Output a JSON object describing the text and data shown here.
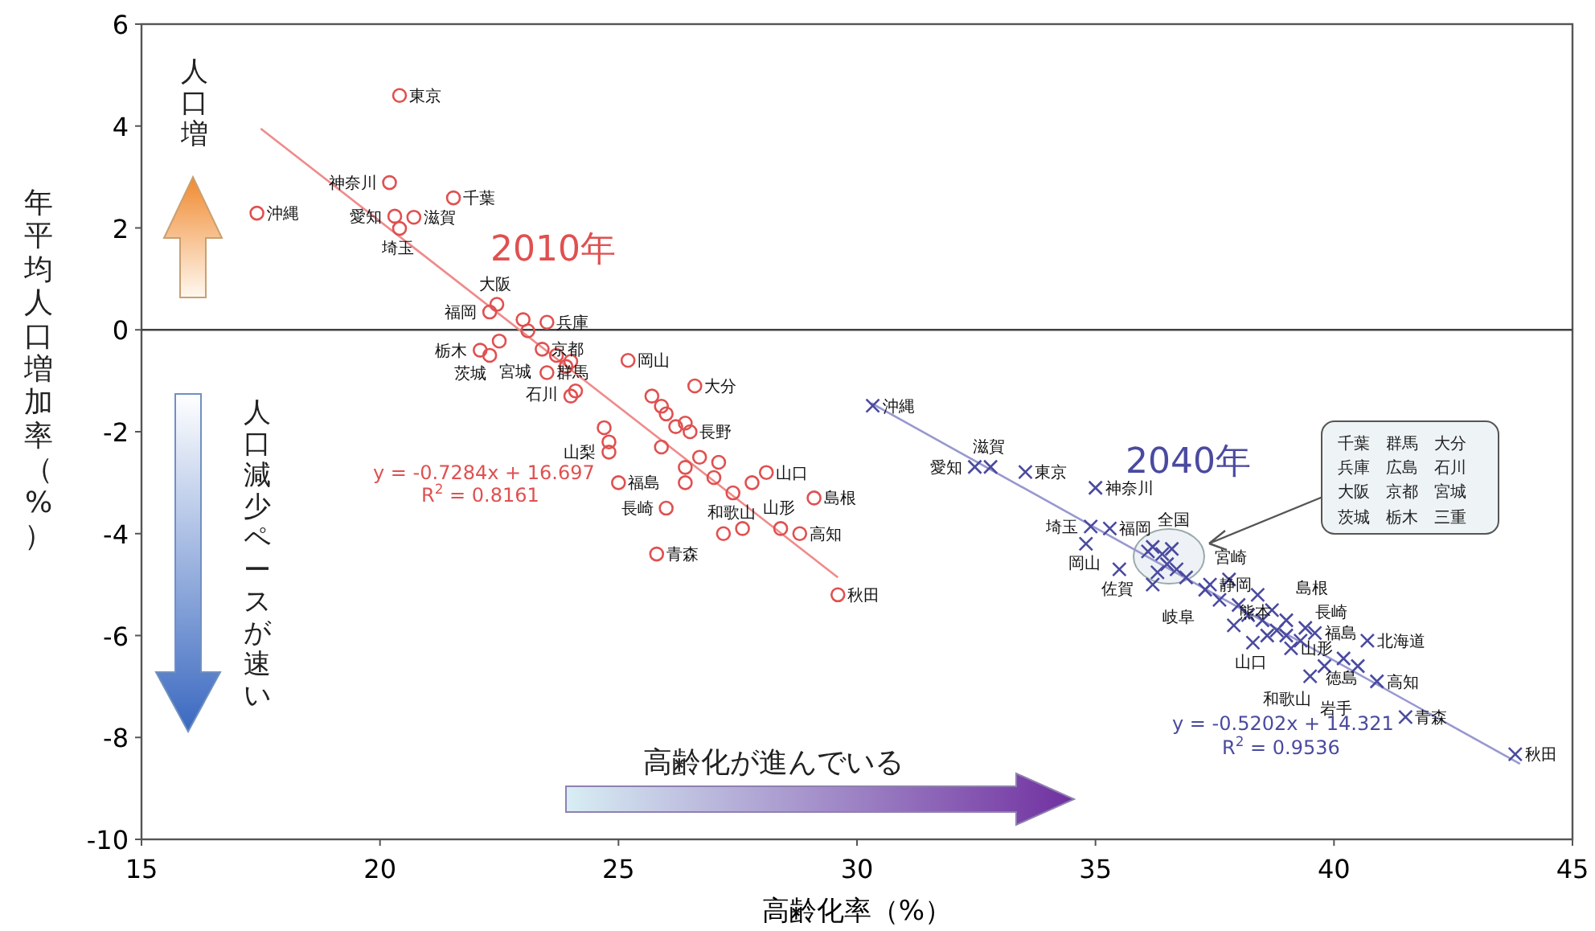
{
  "chart_data": {
    "type": "scatter",
    "xlabel": "高齢化率（%）",
    "ylabel": "年平均人口増加率（%）",
    "xlim": [
      15,
      45
    ],
    "ylim": [
      -10,
      6
    ],
    "xticks": [
      15,
      20,
      25,
      30,
      35,
      40,
      45
    ],
    "yticks": [
      -10,
      -8,
      -6,
      -4,
      -2,
      0,
      2,
      4,
      6
    ],
    "ref_lines": [
      {
        "axis": "y",
        "value": 0,
        "color": "#404040"
      }
    ],
    "series": [
      {
        "name": "2010年",
        "type": "scatter",
        "marker": "circle",
        "color": "#e05050",
        "x": [
          20.41,
          20.2,
          21.54,
          17.42,
          20.31,
          20.71,
          20.41,
          22.45,
          22.3,
          23.5,
          22.1,
          22.5,
          22.3,
          23.4,
          24.0,
          25.2,
          23.5,
          24.8,
          26.6,
          26.5,
          28.1,
          29.1,
          27.4,
          25.0,
          26.0,
          28.8,
          28.4,
          25.8,
          29.6,
          23.0,
          23.1,
          23.7,
          23.9,
          24.0,
          24.1,
          24.7,
          24.8,
          25.7,
          25.9,
          26.0,
          26.4,
          25.9,
          26.7,
          26.4,
          27.2,
          27.6,
          26.4,
          27.0,
          27.8,
          26.2,
          27.1
        ],
        "values": [
          4.6,
          2.89,
          2.59,
          2.29,
          2.23,
          2.21,
          1.99,
          0.5,
          0.35,
          0.15,
          -0.4,
          -0.22,
          -0.5,
          -0.38,
          -0.62,
          -0.6,
          -0.84,
          -2.4,
          -1.1,
          -2.0,
          -2.8,
          -3.3,
          -3.2,
          -3.0,
          -3.5,
          -4.0,
          -3.9,
          -4.4,
          -5.2,
          0.2,
          -0.02,
          -0.5,
          -0.72,
          -1.3,
          -1.2,
          -1.92,
          -2.2,
          -1.3,
          -1.5,
          -1.65,
          -1.83,
          -2.3,
          -2.5,
          -2.7,
          -4.0,
          -3.9,
          -3.0,
          -2.9,
          -3.0,
          -1.9,
          -2.6
        ]
      },
      {
        "type": "line",
        "color": "#f08a8a",
        "x": [
          17.5,
          29.6
        ],
        "values": [
          3.95,
          -4.86
        ]
      },
      {
        "name": "2040年",
        "type": "scatter",
        "marker": "cross",
        "color": "#4a4aa0",
        "x": [
          30.33,
          32.47,
          32.8,
          33.53,
          35.0,
          34.9,
          35.3,
          34.8,
          35.5,
          36.1,
          36.2,
          37.3,
          37.4,
          37.8,
          38.3,
          39.1,
          40.7,
          40.2,
          39.8,
          39.5,
          40.9,
          41.5,
          43.8,
          39.4,
          39.0,
          39.6,
          36.2,
          36.4,
          36.5,
          36.3,
          36.7,
          36.9,
          36.6,
          37.6,
          38.0,
          38.2,
          38.5,
          38.7,
          38.8,
          39.0,
          38.4,
          39.3,
          40.5,
          37.9,
          38.6
        ],
        "values": [
          -1.49,
          -2.69,
          -2.69,
          -2.79,
          -3.1,
          -3.86,
          -3.9,
          -4.2,
          -4.7,
          -4.35,
          -5.0,
          -5.1,
          -5.0,
          -4.9,
          -6.14,
          -6.25,
          -6.1,
          -6.45,
          -6.6,
          -6.8,
          -6.9,
          -7.6,
          -8.33,
          -5.85,
          -5.7,
          -5.95,
          -4.26,
          -4.4,
          -4.6,
          -4.76,
          -4.7,
          -4.86,
          -4.3,
          -5.3,
          -5.4,
          -5.6,
          -5.7,
          -5.5,
          -5.9,
          -6.0,
          -5.2,
          -6.1,
          -6.6,
          -5.8,
          -6.0
        ]
      },
      {
        "type": "line",
        "color": "#9898d0",
        "x": [
          30.3,
          43.9
        ],
        "values": [
          -1.44,
          -8.52
        ]
      }
    ],
    "annotations": [
      "人口増",
      "人口減少ペースが速い",
      "高齢化が進んでいる",
      "y = -0.7284x + 16.697",
      "R$^{2}$ = 0.8161",
      "y = -0.5202x + 14.321",
      "R$^{2}$ = 0.9536",
      "千葉　群馬　大分",
      "兵庫　広島　石川",
      "大阪　京都　宮城",
      "茨城　栃木　三重",
      {
        "text": "東京",
        "x": 20.41,
        "y": 4.6
      },
      {
        "text": "神奈川",
        "x": 20.2,
        "y": 2.89
      },
      {
        "text": "千葉",
        "x": 21.54,
        "y": 2.59
      },
      {
        "text": "沖縄",
        "x": 17.42,
        "y": 2.29
      },
      {
        "text": "愛知",
        "x": 20.31,
        "y": 2.23
      },
      {
        "text": "滋賀",
        "x": 20.71,
        "y": 2.21
      },
      {
        "text": "埼玉",
        "x": 20.41,
        "y": 1.99
      },
      {
        "text": "大阪",
        "x": 22.45,
        "y": 0.5
      },
      {
        "text": "福岡",
        "x": 22.3,
        "y": 0.35
      },
      {
        "text": "兵庫",
        "x": 23.5,
        "y": 0.15
      },
      {
        "text": "栃木",
        "x": 22.1,
        "y": -0.4
      },
      {
        "text": "茨城",
        "x": 22.5,
        "y": -0.22
      },
      {
        "text": "宮城",
        "x": 22.3,
        "y": -0.5
      },
      {
        "text": "京都",
        "x": 23.4,
        "y": -0.38
      },
      {
        "text": "石川",
        "x": 24.0,
        "y": -0.62
      },
      {
        "text": "岡山",
        "x": 25.2,
        "y": -0.6
      },
      {
        "text": "群馬",
        "x": 23.5,
        "y": -0.84
      },
      {
        "text": "山梨",
        "x": 24.8,
        "y": -2.4
      },
      {
        "text": "大分",
        "x": 26.6,
        "y": -1.1
      },
      {
        "text": "長野",
        "x": 26.5,
        "y": -2.0
      },
      {
        "text": "山口",
        "x": 28.1,
        "y": -2.8
      },
      {
        "text": "島根",
        "x": 29.1,
        "y": -3.3
      },
      {
        "text": "和歌山",
        "x": 27.4,
        "y": -3.2
      },
      {
        "text": "福島",
        "x": 25.0,
        "y": -3.0
      },
      {
        "text": "長崎",
        "x": 26.0,
        "y": -3.5
      },
      {
        "text": "高知",
        "x": 28.8,
        "y": -4.0
      },
      {
        "text": "山形",
        "x": 28.4,
        "y": -3.9
      },
      {
        "text": "青森",
        "x": 25.8,
        "y": -4.4
      },
      {
        "text": "秋田",
        "x": 29.6,
        "y": -5.2
      },
      {
        "text": "沖縄",
        "x": 30.33,
        "y": -1.49
      },
      {
        "text": "愛知",
        "x": 32.47,
        "y": -2.69
      },
      {
        "text": "滋賀",
        "x": 32.8,
        "y": -2.69
      },
      {
        "text": "東京",
        "x": 33.53,
        "y": -2.79
      },
      {
        "text": "神奈川",
        "x": 35.0,
        "y": -3.1
      },
      {
        "text": "埼玉",
        "x": 34.9,
        "y": -3.86
      },
      {
        "text": "福岡",
        "x": 35.3,
        "y": -3.9
      },
      {
        "text": "岡山",
        "x": 34.8,
        "y": -4.2
      },
      {
        "text": "佐賀",
        "x": 35.5,
        "y": -4.7
      },
      {
        "text": "全国",
        "x": 36.1,
        "y": -4.35
      },
      {
        "text": "岐阜",
        "x": 36.2,
        "y": -5.0
      },
      {
        "text": "宮崎",
        "x": 37.3,
        "y": -5.1
      },
      {
        "text": "静岡",
        "x": 37.4,
        "y": -5.0
      },
      {
        "text": "熊本",
        "x": 37.8,
        "y": -4.9
      },
      {
        "text": "山口",
        "x": 38.3,
        "y": -6.14
      },
      {
        "text": "山形",
        "x": 39.1,
        "y": -6.25
      },
      {
        "text": "北海道",
        "x": 40.7,
        "y": -6.1
      },
      {
        "text": "徳島",
        "x": 40.2,
        "y": -6.45
      },
      {
        "text": "和歌山",
        "x": 39.8,
        "y": -6.6
      },
      {
        "text": "岩手",
        "x": 39.5,
        "y": -6.8
      },
      {
        "text": "高知",
        "x": 40.9,
        "y": -6.9
      },
      {
        "text": "青森",
        "x": 41.5,
        "y": -7.6
      },
      {
        "text": "秋田",
        "x": 43.8,
        "y": -8.33
      },
      {
        "text": "長崎",
        "x": 39.4,
        "y": -5.85
      },
      {
        "text": "島根",
        "x": 39.0,
        "y": -5.7
      },
      {
        "text": "福島",
        "x": 39.6,
        "y": -5.95
      }
    ]
  }
}
